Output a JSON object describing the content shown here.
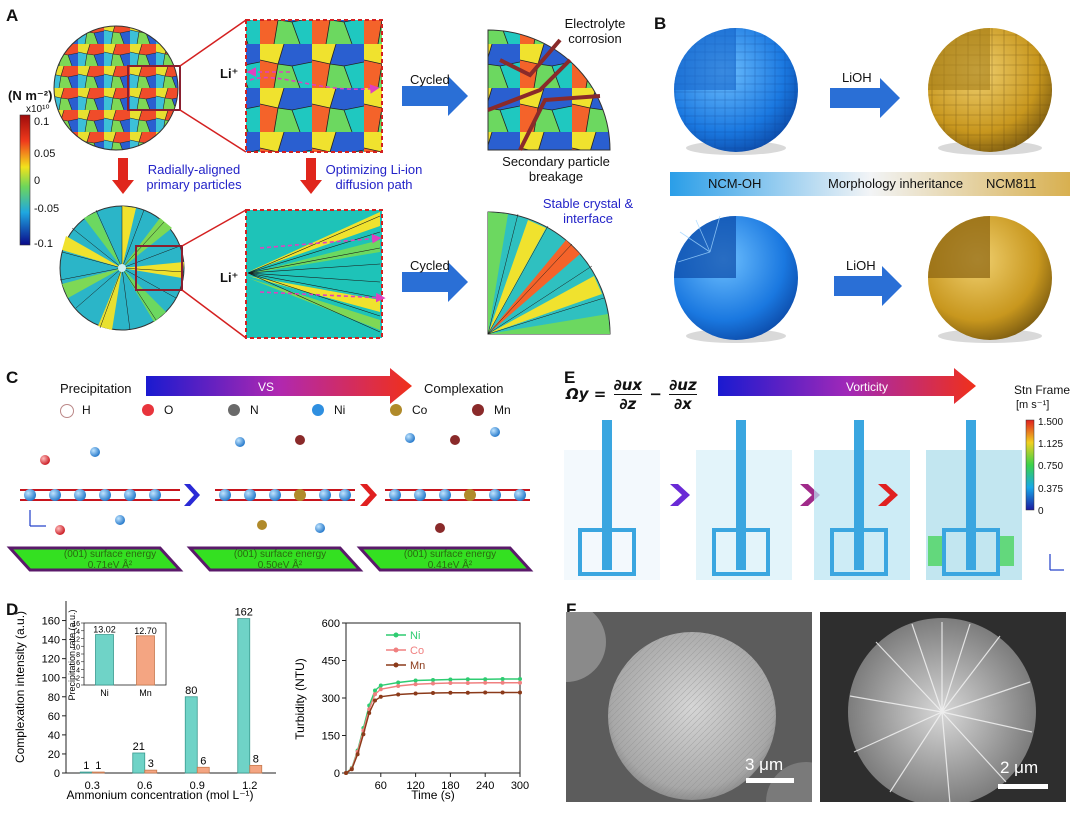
{
  "panels": {
    "a": "A",
    "b": "B",
    "c": "C",
    "d": "D",
    "e": "E",
    "f": "F"
  },
  "colors": {
    "arrow_blue": "#2a6fd6",
    "arrow_red": "#e0261c",
    "label_blue": "#2323c8",
    "ni": "#2ecc71",
    "co": "#f08080",
    "mn": "#8b3a1a",
    "bar_teal": "#6fd3c7",
    "bar_salmon": "#f4a582",
    "surface_green": "#34e021"
  },
  "a": {
    "colorbar_unit": "(N m⁻²)",
    "colorbar_scale": "x10¹⁰",
    "colorbar_ticks": [
      "0.1",
      "0.05",
      "0",
      "-0.05",
      "-0.1"
    ],
    "li_top": "Li⁺",
    "li_bottom": "Li⁺",
    "cycled_top": "Cycled",
    "cycled_bottom": "Cycled",
    "electrolyte": "Electrolyte corrosion",
    "secondary": "Secondary particle breakage",
    "radial": "Radially-aligned primary particles",
    "optimizing": "Optimizing Li-ion diffusion path",
    "stable": "Stable crystal & interface"
  },
  "b": {
    "lioh_top": "LiOH",
    "lioh_bottom": "LiOH",
    "bar_left": "NCM-OH",
    "bar_mid": "Morphology inheritance",
    "bar_right": "NCM811"
  },
  "c": {
    "precip": "Precipitation",
    "vs": "VS",
    "complex": "Complexation",
    "legend": [
      {
        "sym": "H",
        "color": "#f5e8e8"
      },
      {
        "sym": "O",
        "color": "#e8343c"
      },
      {
        "sym": "N",
        "color": "#6a6a6a"
      },
      {
        "sym": "Ni",
        "color": "#2f8fe0"
      },
      {
        "sym": "Co",
        "color": "#b08a2a"
      },
      {
        "sym": "Mn",
        "color": "#8a2a2a"
      }
    ],
    "surfaces": [
      {
        "title": "(001) surface energy",
        "value": "0.71eV Å²"
      },
      {
        "title": "(001) surface energy",
        "value": "0.50eV Å²"
      },
      {
        "title": "(001) surface energy",
        "value": "0.41eV Å²"
      }
    ]
  },
  "e": {
    "eq_lhs": "Ωy =",
    "eq_t1_num": "∂ux",
    "eq_t1_den": "∂z",
    "eq_minus": "−",
    "eq_t2_num": "∂uz",
    "eq_t2_den": "∂x",
    "vorticity": "Vorticity",
    "frame_title": "Stn Frame",
    "frame_unit": "[m s⁻¹]",
    "frame_ticks": [
      "1.500",
      "1.125",
      "0.750",
      "0.375",
      "0"
    ]
  },
  "f": {
    "scale_left": "3 μm",
    "scale_right": "2 μm"
  },
  "chart_data": [
    {
      "type": "bar",
      "title": "",
      "xlabel": "Ammonium concentration (mol L⁻¹)",
      "ylabel": "Complexation intensity (a.u.)",
      "categories": [
        "0.3",
        "0.6",
        "0.9",
        "1.2"
      ],
      "ylim": [
        0,
        170
      ],
      "yticks": [
        "0",
        "20",
        "40",
        "60",
        "80",
        "100",
        "120",
        "140",
        "160"
      ],
      "series": [
        {
          "name": "Ni",
          "values": [
            1,
            21,
            80,
            162
          ],
          "labels": [
            "1",
            "21",
            "80",
            "162"
          ]
        },
        {
          "name": "Mn",
          "values": [
            1,
            3,
            6,
            8
          ],
          "labels": [
            "1",
            "3",
            "6",
            "8"
          ]
        }
      ]
    },
    {
      "type": "bar",
      "title": "",
      "xlabel": "",
      "ylabel": "Precipitation rate (a.u.)",
      "categories": [
        "Ni",
        "Mn"
      ],
      "values": [
        13.02,
        12.7
      ],
      "labels": [
        "13.02",
        "12.70"
      ],
      "ylim": [
        0,
        16
      ],
      "yticks": [
        "0",
        "2",
        "4",
        "6",
        "8",
        "10",
        "12",
        "14",
        "16"
      ]
    },
    {
      "type": "line",
      "title": "",
      "xlabel": "Time (s)",
      "ylabel": "Turbidity (NTU)",
      "xlim": [
        0,
        300
      ],
      "ylim": [
        0,
        600
      ],
      "xticks": [
        "60",
        "120",
        "180",
        "240",
        "300"
      ],
      "yticks": [
        "0",
        "150",
        "300",
        "450",
        "600"
      ],
      "x": [
        0,
        10,
        20,
        30,
        40,
        50,
        60,
        90,
        120,
        150,
        180,
        210,
        240,
        270,
        300
      ],
      "series": [
        {
          "name": "Ni",
          "values": [
            0,
            20,
            90,
            180,
            270,
            330,
            350,
            362,
            370,
            372,
            374,
            375,
            375,
            376,
            376
          ]
        },
        {
          "name": "Co",
          "values": [
            0,
            18,
            85,
            170,
            255,
            315,
            335,
            348,
            355,
            358,
            360,
            360,
            361,
            361,
            361
          ]
        },
        {
          "name": "Mn",
          "values": [
            0,
            15,
            75,
            155,
            240,
            290,
            305,
            314,
            318,
            320,
            321,
            321,
            322,
            322,
            322
          ]
        }
      ]
    }
  ]
}
